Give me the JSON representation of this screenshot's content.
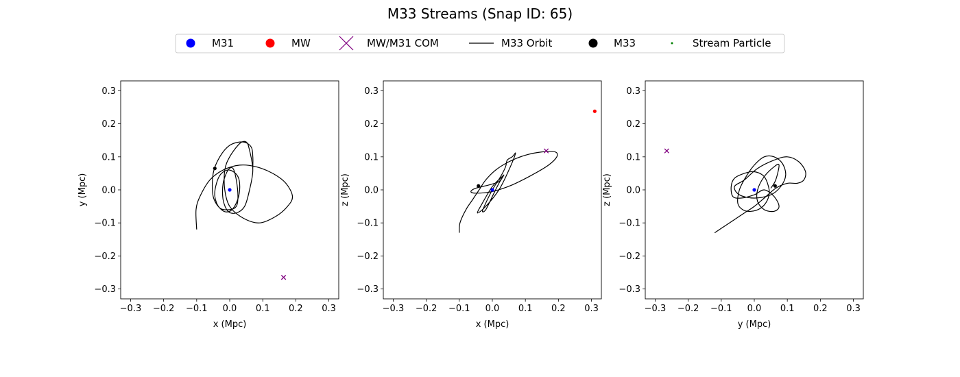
{
  "figure": {
    "title": "M33 Streams (Snap ID: 65)"
  },
  "colors": {
    "m31": "#0000ff",
    "mw": "#ff0000",
    "com": "#800080",
    "m33": "#000000",
    "stream": "#008000"
  },
  "legend": {
    "placement": "top-center",
    "entries": [
      {
        "label": "M31",
        "marker": "dot",
        "color": "#0000ff"
      },
      {
        "label": "MW",
        "marker": "dot",
        "color": "#ff0000"
      },
      {
        "label": "MW/M31 COM",
        "marker": "x",
        "color": "#800080"
      },
      {
        "label": "M33 Orbit",
        "marker": "line",
        "color": "#000000"
      },
      {
        "label": "M33",
        "marker": "dot",
        "color": "#000000"
      },
      {
        "label": "Stream Particle",
        "marker": "small-dot",
        "color": "#008000"
      }
    ]
  },
  "chart_data": [
    {
      "type": "line",
      "xlabel": "x (Mpc)",
      "ylabel": "y (Mpc)",
      "xlim": [
        -0.33,
        0.33
      ],
      "ylim": [
        -0.33,
        0.33
      ],
      "xticks": [
        "-0.3",
        "-0.2",
        "-0.1",
        "0.0",
        "0.1",
        "0.2",
        "0.3"
      ],
      "yticks": [
        "-0.3",
        "-0.2",
        "-0.1",
        "0.0",
        "0.1",
        "0.2",
        "0.3"
      ],
      "grid": false,
      "orbit": [
        [
          -0.1,
          -0.12
        ],
        [
          -0.102,
          -0.06
        ],
        [
          -0.09,
          -0.02
        ],
        [
          -0.06,
          0.03
        ],
        [
          -0.02,
          0.06
        ],
        [
          0.03,
          0.075
        ],
        [
          0.08,
          0.07
        ],
        [
          0.13,
          0.05
        ],
        [
          0.17,
          0.02
        ],
        [
          0.19,
          -0.02
        ],
        [
          0.175,
          -0.05
        ],
        [
          0.14,
          -0.08
        ],
        [
          0.09,
          -0.1
        ],
        [
          0.04,
          -0.085
        ],
        [
          0.0,
          -0.05
        ],
        [
          -0.015,
          0.0
        ],
        [
          -0.015,
          0.06
        ],
        [
          0.0,
          0.1
        ],
        [
          0.03,
          0.14
        ],
        [
          0.05,
          0.145
        ],
        [
          0.06,
          0.12
        ],
        [
          0.07,
          0.06
        ],
        [
          0.06,
          0.0
        ],
        [
          0.045,
          -0.05
        ],
        [
          0.02,
          -0.07
        ],
        [
          -0.005,
          -0.065
        ],
        [
          -0.02,
          -0.03
        ],
        [
          -0.02,
          0.02
        ],
        [
          -0.005,
          0.06
        ],
        [
          0.01,
          0.065
        ],
        [
          0.02,
          0.03
        ],
        [
          0.025,
          -0.02
        ],
        [
          0.02,
          -0.05
        ],
        [
          0.0,
          -0.06
        ],
        [
          -0.03,
          -0.055
        ],
        [
          -0.045,
          -0.02
        ],
        [
          -0.04,
          0.02
        ],
        [
          -0.025,
          0.05
        ],
        [
          0.0,
          0.06
        ],
        [
          0.025,
          0.04
        ],
        [
          0.03,
          0.0
        ],
        [
          0.02,
          -0.04
        ],
        [
          0.0,
          -0.065
        ],
        [
          -0.025,
          -0.06
        ],
        [
          -0.05,
          -0.02
        ],
        [
          -0.05,
          0.05
        ],
        [
          -0.03,
          0.1
        ],
        [
          0.0,
          0.135
        ],
        [
          0.04,
          0.145
        ],
        [
          0.065,
          0.13
        ],
        [
          0.07,
          0.1
        ],
        [
          0.07,
          0.065
        ]
      ],
      "m31": [
        0.0,
        0.0
      ],
      "m33": [
        -0.045,
        0.065
      ],
      "com": [
        0.163,
        -0.265
      ],
      "mw": null
    },
    {
      "type": "line",
      "xlabel": "x (Mpc)",
      "ylabel": "z (Mpc)",
      "xlim": [
        -0.33,
        0.33
      ],
      "ylim": [
        -0.33,
        0.33
      ],
      "xticks": [
        "-0.3",
        "-0.2",
        "-0.1",
        "0.0",
        "0.1",
        "0.2",
        "0.3"
      ],
      "yticks": [
        "-0.3",
        "-0.2",
        "-0.1",
        "0.0",
        "0.1",
        "0.2",
        "0.3"
      ],
      "grid": false,
      "orbit": [
        [
          -0.1,
          -0.13
        ],
        [
          -0.098,
          -0.1
        ],
        [
          -0.08,
          -0.06
        ],
        [
          -0.06,
          -0.03
        ],
        [
          -0.04,
          0.0
        ],
        [
          -0.02,
          0.03
        ],
        [
          0.01,
          0.06
        ],
        [
          0.05,
          0.085
        ],
        [
          0.1,
          0.105
        ],
        [
          0.15,
          0.115
        ],
        [
          0.19,
          0.115
        ],
        [
          0.195,
          0.1
        ],
        [
          0.17,
          0.075
        ],
        [
          0.12,
          0.045
        ],
        [
          0.06,
          0.015
        ],
        [
          0.0,
          -0.005
        ],
        [
          -0.05,
          -0.01
        ],
        [
          -0.065,
          -0.005
        ],
        [
          -0.05,
          0.005
        ],
        [
          -0.01,
          0.015
        ],
        [
          0.02,
          0.025
        ],
        [
          0.03,
          0.04
        ],
        [
          0.0,
          0.01
        ],
        [
          -0.03,
          -0.04
        ],
        [
          -0.045,
          -0.07
        ],
        [
          -0.02,
          -0.05
        ],
        [
          0.02,
          0.0
        ],
        [
          0.05,
          0.06
        ],
        [
          0.07,
          0.11
        ],
        [
          0.06,
          0.1
        ],
        [
          0.045,
          0.09
        ],
        [
          0.04,
          0.07
        ],
        [
          0.025,
          0.04
        ],
        [
          0.0,
          0.0
        ],
        [
          -0.02,
          -0.04
        ],
        [
          -0.03,
          -0.065
        ],
        [
          -0.02,
          -0.06
        ],
        [
          0.0,
          -0.02
        ],
        [
          0.02,
          0.02
        ],
        [
          0.035,
          0.045
        ],
        [
          0.02,
          0.03
        ]
      ],
      "m31": [
        0.0,
        0.0
      ],
      "m33": [
        -0.042,
        0.012
      ],
      "com": [
        0.163,
        0.118
      ],
      "mw": [
        0.31,
        0.238
      ]
    },
    {
      "type": "line",
      "xlabel": "y (Mpc)",
      "ylabel": "z (Mpc)",
      "xlim": [
        -0.33,
        0.33
      ],
      "ylim": [
        -0.33,
        0.33
      ],
      "xticks": [
        "-0.3",
        "-0.2",
        "-0.1",
        "0.0",
        "0.1",
        "0.2",
        "0.3"
      ],
      "yticks": [
        "-0.3",
        "-0.2",
        "-0.1",
        "0.0",
        "0.1",
        "0.2",
        "0.3"
      ],
      "grid": false,
      "orbit": [
        [
          -0.12,
          -0.13
        ],
        [
          -0.09,
          -0.11
        ],
        [
          -0.06,
          -0.09
        ],
        [
          -0.03,
          -0.07
        ],
        [
          0.0,
          -0.05
        ],
        [
          0.03,
          -0.025
        ],
        [
          0.065,
          0.005
        ],
        [
          0.1,
          0.02
        ],
        [
          0.13,
          0.02
        ],
        [
          0.15,
          0.03
        ],
        [
          0.155,
          0.055
        ],
        [
          0.135,
          0.085
        ],
        [
          0.1,
          0.1
        ],
        [
          0.06,
          0.09
        ],
        [
          0.01,
          0.065
        ],
        [
          -0.03,
          0.03
        ],
        [
          -0.06,
          0.01
        ],
        [
          -0.045,
          -0.015
        ],
        [
          0.0,
          -0.025
        ],
        [
          0.05,
          -0.015
        ],
        [
          0.08,
          0.01
        ],
        [
          0.095,
          0.045
        ],
        [
          0.085,
          0.08
        ],
        [
          0.06,
          0.1
        ],
        [
          0.03,
          0.1
        ],
        [
          0.0,
          0.075
        ],
        [
          -0.025,
          0.04
        ],
        [
          -0.045,
          0.0
        ],
        [
          -0.05,
          -0.04
        ],
        [
          -0.035,
          -0.06
        ],
        [
          -0.01,
          -0.065
        ],
        [
          0.02,
          -0.055
        ],
        [
          0.04,
          -0.03
        ],
        [
          0.045,
          0.0
        ],
        [
          0.03,
          0.04
        ],
        [
          0.0,
          0.055
        ],
        [
          -0.03,
          0.05
        ],
        [
          -0.06,
          0.035
        ],
        [
          -0.07,
          0.01
        ],
        [
          -0.065,
          -0.02
        ],
        [
          -0.04,
          -0.025
        ],
        [
          0.0,
          -0.015
        ],
        [
          0.03,
          0.0
        ],
        [
          0.06,
          -0.02
        ],
        [
          0.075,
          -0.05
        ],
        [
          0.06,
          -0.065
        ],
        [
          0.03,
          -0.06
        ],
        [
          0.01,
          -0.035
        ],
        [
          0.01,
          0.0
        ],
        [
          0.03,
          0.04
        ],
        [
          0.06,
          0.07
        ],
        [
          0.075,
          0.075
        ],
        [
          0.065,
          0.03
        ],
        [
          0.05,
          0.005
        ]
      ],
      "m31": [
        0.0,
        0.0
      ],
      "m33": [
        0.063,
        0.012
      ],
      "com": [
        -0.265,
        0.118
      ],
      "mw": null
    }
  ]
}
